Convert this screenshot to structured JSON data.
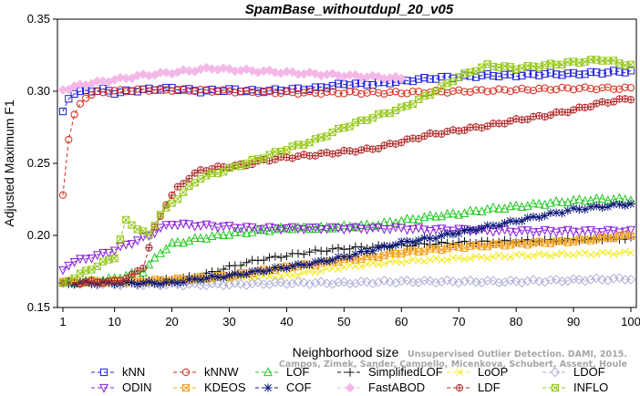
{
  "chart_data": {
    "type": "line",
    "title": "SpamBase_withoutdupl_20_v05",
    "xlabel": "Neighborhood size",
    "ylabel": "Adjusted Maximum F1",
    "xlim": [
      1,
      100
    ],
    "ylim": [
      0.15,
      0.35
    ],
    "xticks": [
      1,
      10,
      20,
      30,
      40,
      50,
      60,
      70,
      80,
      90,
      100
    ],
    "yticks": [
      0.15,
      0.2,
      0.25,
      0.3,
      0.35
    ],
    "ytick_labels": [
      "0.15",
      "0.20",
      "0.25",
      "0.30",
      "0.35"
    ],
    "grid": false,
    "legend_position": "bottom",
    "watermark": [
      "Unsupervised Outlier Detection. DAMI, 2015.",
      "Campos, Zimek, Sander, Campello, Micenkova, Schubert, Assent, Houle"
    ],
    "series": [
      {
        "name": "kNN",
        "color": "#1f1fd6",
        "marker": "square",
        "dash": "4,3",
        "keys": [
          [
            1,
            0.286
          ],
          [
            2,
            0.295
          ],
          [
            3,
            0.299
          ],
          [
            5,
            0.3
          ],
          [
            8,
            0.301
          ],
          [
            10,
            0.299
          ],
          [
            15,
            0.301
          ],
          [
            20,
            0.302
          ],
          [
            25,
            0.3
          ],
          [
            30,
            0.301
          ],
          [
            35,
            0.3
          ],
          [
            40,
            0.301
          ],
          [
            45,
            0.302
          ],
          [
            50,
            0.305
          ],
          [
            55,
            0.305
          ],
          [
            60,
            0.307
          ],
          [
            65,
            0.309
          ],
          [
            70,
            0.31
          ],
          [
            75,
            0.311
          ],
          [
            80,
            0.311
          ],
          [
            85,
            0.312
          ],
          [
            90,
            0.312
          ],
          [
            95,
            0.313
          ],
          [
            100,
            0.314
          ]
        ]
      },
      {
        "name": "kNNW",
        "color": "#d62a1a",
        "marker": "circle",
        "dash": "4,3",
        "keys": [
          [
            1,
            0.228
          ],
          [
            2,
            0.267
          ],
          [
            3,
            0.283
          ],
          [
            4,
            0.291
          ],
          [
            5,
            0.296
          ],
          [
            7,
            0.299
          ],
          [
            10,
            0.3
          ],
          [
            15,
            0.301
          ],
          [
            20,
            0.301
          ],
          [
            30,
            0.3
          ],
          [
            40,
            0.299
          ],
          [
            50,
            0.299
          ],
          [
            60,
            0.299
          ],
          [
            70,
            0.3
          ],
          [
            80,
            0.301
          ],
          [
            90,
            0.302
          ],
          [
            100,
            0.302
          ]
        ]
      },
      {
        "name": "LOF",
        "color": "#22c922",
        "marker": "triangle",
        "dash": "4,3",
        "keys": [
          [
            1,
            0.167
          ],
          [
            5,
            0.168
          ],
          [
            10,
            0.17
          ],
          [
            15,
            0.175
          ],
          [
            18,
            0.188
          ],
          [
            20,
            0.194
          ],
          [
            25,
            0.198
          ],
          [
            30,
            0.201
          ],
          [
            35,
            0.203
          ],
          [
            40,
            0.205
          ],
          [
            45,
            0.205
          ],
          [
            50,
            0.206
          ],
          [
            55,
            0.207
          ],
          [
            60,
            0.21
          ],
          [
            65,
            0.213
          ],
          [
            70,
            0.215
          ],
          [
            75,
            0.218
          ],
          [
            80,
            0.22
          ],
          [
            85,
            0.222
          ],
          [
            90,
            0.224
          ],
          [
            95,
            0.225
          ],
          [
            100,
            0.225
          ]
        ]
      },
      {
        "name": "SimplifiedLOF",
        "color": "#111111",
        "marker": "plus",
        "dash": "4,3",
        "keys": [
          [
            1,
            0.167
          ],
          [
            10,
            0.167
          ],
          [
            20,
            0.169
          ],
          [
            25,
            0.172
          ],
          [
            30,
            0.178
          ],
          [
            35,
            0.183
          ],
          [
            40,
            0.186
          ],
          [
            45,
            0.189
          ],
          [
            50,
            0.191
          ],
          [
            55,
            0.192
          ],
          [
            60,
            0.193
          ],
          [
            65,
            0.194
          ],
          [
            70,
            0.195
          ],
          [
            80,
            0.196
          ],
          [
            90,
            0.197
          ],
          [
            100,
            0.198
          ]
        ]
      },
      {
        "name": "LoOP",
        "color": "#f2ea1a",
        "marker": "cross",
        "dash": "4,3",
        "keys": [
          [
            1,
            0.167
          ],
          [
            10,
            0.167
          ],
          [
            20,
            0.168
          ],
          [
            30,
            0.17
          ],
          [
            35,
            0.171
          ],
          [
            40,
            0.172
          ],
          [
            45,
            0.175
          ],
          [
            50,
            0.178
          ],
          [
            55,
            0.18
          ],
          [
            60,
            0.182
          ],
          [
            65,
            0.183
          ],
          [
            70,
            0.184
          ],
          [
            75,
            0.185
          ],
          [
            80,
            0.186
          ],
          [
            90,
            0.187
          ],
          [
            100,
            0.188
          ]
        ]
      },
      {
        "name": "LDOF",
        "color": "#b0b0d8",
        "marker": "diamond",
        "dash": "4,3",
        "keys": [
          [
            1,
            0.167
          ],
          [
            10,
            0.166
          ],
          [
            20,
            0.166
          ],
          [
            30,
            0.166
          ],
          [
            40,
            0.167
          ],
          [
            50,
            0.167
          ],
          [
            60,
            0.168
          ],
          [
            70,
            0.168
          ],
          [
            80,
            0.168
          ],
          [
            90,
            0.169
          ],
          [
            100,
            0.17
          ]
        ]
      },
      {
        "name": "ODIN",
        "color": "#8a1fd6",
        "marker": "tri-down",
        "dash": "4,3",
        "keys": [
          [
            1,
            0.176
          ],
          [
            2,
            0.18
          ],
          [
            4,
            0.183
          ],
          [
            7,
            0.186
          ],
          [
            10,
            0.19
          ],
          [
            13,
            0.195
          ],
          [
            16,
            0.2
          ],
          [
            18,
            0.205
          ],
          [
            20,
            0.208
          ],
          [
            25,
            0.207
          ],
          [
            30,
            0.206
          ],
          [
            35,
            0.205
          ],
          [
            40,
            0.205
          ],
          [
            45,
            0.205
          ],
          [
            50,
            0.205
          ],
          [
            55,
            0.205
          ],
          [
            60,
            0.205
          ],
          [
            65,
            0.204
          ],
          [
            70,
            0.204
          ],
          [
            80,
            0.203
          ],
          [
            90,
            0.203
          ],
          [
            100,
            0.203
          ]
        ]
      },
      {
        "name": "KDEOS",
        "color": "#f2a01a",
        "marker": "xsquare",
        "dash": "4,3",
        "keys": [
          [
            1,
            0.168
          ],
          [
            10,
            0.168
          ],
          [
            20,
            0.169
          ],
          [
            30,
            0.172
          ],
          [
            35,
            0.175
          ],
          [
            40,
            0.178
          ],
          [
            45,
            0.18
          ],
          [
            50,
            0.183
          ],
          [
            55,
            0.185
          ],
          [
            60,
            0.188
          ],
          [
            65,
            0.19
          ],
          [
            70,
            0.192
          ],
          [
            75,
            0.193
          ],
          [
            80,
            0.194
          ],
          [
            85,
            0.195
          ],
          [
            90,
            0.196
          ],
          [
            95,
            0.198
          ],
          [
            100,
            0.2
          ]
        ]
      },
      {
        "name": "COF",
        "color": "#0e1a7a",
        "marker": "star",
        "dash": "4,3",
        "keys": [
          [
            1,
            0.167
          ],
          [
            10,
            0.167
          ],
          [
            20,
            0.167
          ],
          [
            25,
            0.17
          ],
          [
            30,
            0.172
          ],
          [
            35,
            0.175
          ],
          [
            40,
            0.178
          ],
          [
            45,
            0.181
          ],
          [
            50,
            0.185
          ],
          [
            55,
            0.19
          ],
          [
            60,
            0.195
          ],
          [
            65,
            0.198
          ],
          [
            70,
            0.202
          ],
          [
            75,
            0.206
          ],
          [
            80,
            0.21
          ],
          [
            85,
            0.214
          ],
          [
            90,
            0.218
          ],
          [
            95,
            0.22
          ],
          [
            100,
            0.222
          ]
        ]
      },
      {
        "name": "FastABOD",
        "color": "#f4b8e8",
        "marker": "diamond-fill",
        "dash": "4,3",
        "keys": [
          [
            1,
            0.301
          ],
          [
            5,
            0.305
          ],
          [
            10,
            0.308
          ],
          [
            15,
            0.311
          ],
          [
            20,
            0.313
          ],
          [
            25,
            0.315
          ],
          [
            27,
            0.316
          ],
          [
            30,
            0.315
          ],
          [
            35,
            0.314
          ],
          [
            40,
            0.313
          ],
          [
            45,
            0.312
          ],
          [
            50,
            0.311
          ],
          [
            55,
            0.31
          ],
          [
            60,
            0.309
          ]
        ]
      },
      {
        "name": "LDF",
        "color": "#b02a2a",
        "marker": "circle-plus",
        "dash": "4,3",
        "keys": [
          [
            1,
            0.167
          ],
          [
            10,
            0.168
          ],
          [
            13,
            0.172
          ],
          [
            15,
            0.178
          ],
          [
            17,
            0.205
          ],
          [
            19,
            0.222
          ],
          [
            21,
            0.233
          ],
          [
            23,
            0.24
          ],
          [
            25,
            0.245
          ],
          [
            28,
            0.247
          ],
          [
            30,
            0.248
          ],
          [
            33,
            0.249
          ],
          [
            36,
            0.252
          ],
          [
            40,
            0.254
          ],
          [
            45,
            0.256
          ],
          [
            50,
            0.258
          ],
          [
            55,
            0.26
          ],
          [
            60,
            0.265
          ],
          [
            65,
            0.27
          ],
          [
            70,
            0.273
          ],
          [
            75,
            0.276
          ],
          [
            80,
            0.28
          ],
          [
            85,
            0.283
          ],
          [
            90,
            0.287
          ],
          [
            95,
            0.292
          ],
          [
            100,
            0.295
          ]
        ]
      },
      {
        "name": "INFLO",
        "color": "#96c81a",
        "marker": "xsquare",
        "dash": "4,3",
        "keys": [
          [
            1,
            0.167
          ],
          [
            10,
            0.185
          ],
          [
            12,
            0.21
          ],
          [
            14,
            0.205
          ],
          [
            16,
            0.2
          ],
          [
            18,
            0.215
          ],
          [
            20,
            0.222
          ],
          [
            22,
            0.23
          ],
          [
            25,
            0.24
          ],
          [
            30,
            0.246
          ],
          [
            35,
            0.253
          ],
          [
            40,
            0.26
          ],
          [
            45,
            0.266
          ],
          [
            50,
            0.275
          ],
          [
            55,
            0.282
          ],
          [
            60,
            0.288
          ],
          [
            65,
            0.298
          ],
          [
            70,
            0.31
          ],
          [
            75,
            0.318
          ],
          [
            80,
            0.316
          ],
          [
            85,
            0.318
          ],
          [
            90,
            0.32
          ],
          [
            95,
            0.322
          ],
          [
            100,
            0.318
          ]
        ]
      }
    ]
  }
}
